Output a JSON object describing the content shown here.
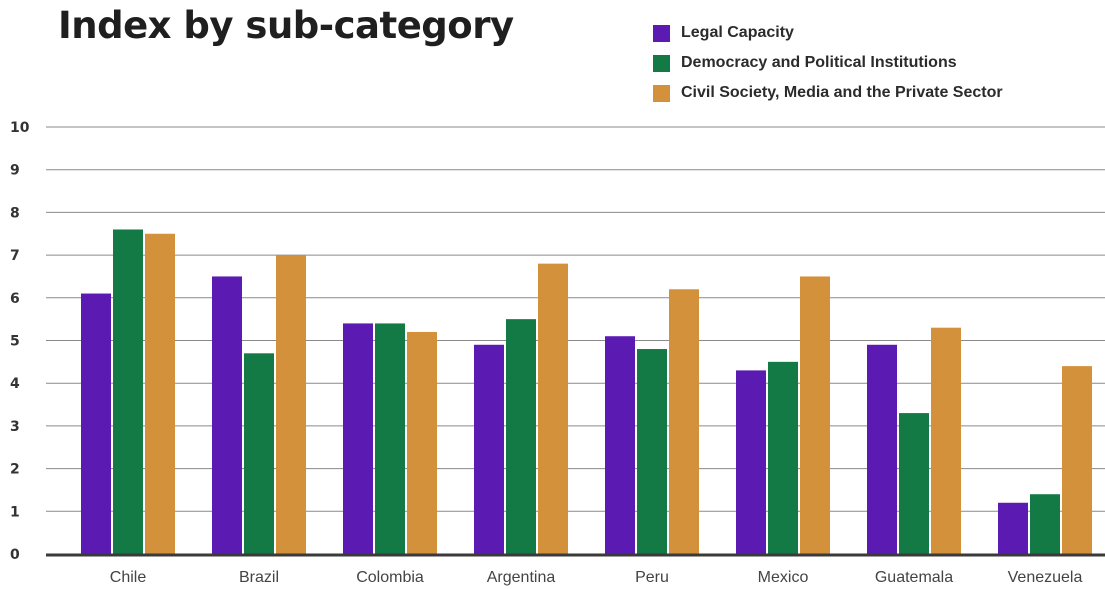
{
  "chart_data": {
    "type": "bar",
    "title": "Index by sub-category",
    "xlabel": "",
    "ylabel": "",
    "ylim": [
      0,
      10
    ],
    "yticks": [
      "0",
      "1",
      "2",
      "3",
      "4",
      "5",
      "6",
      "7",
      "8",
      "9",
      "10"
    ],
    "grid": "horizontal",
    "legend_position": "top-right",
    "categories": [
      "Chile",
      "Brazil",
      "Colombia",
      "Argentina",
      "Peru",
      "Mexico",
      "Guatemala",
      "Venezuela"
    ],
    "series": [
      {
        "name": "Legal Capacity",
        "color": "#5b1bb3",
        "values": [
          6.1,
          6.5,
          5.4,
          4.9,
          5.1,
          4.3,
          4.9,
          1.2
        ]
      },
      {
        "name": "Democracy and Political Institutions",
        "color": "#137a45",
        "values": [
          7.6,
          4.7,
          5.4,
          5.5,
          4.8,
          4.5,
          3.3,
          1.4
        ]
      },
      {
        "name": "Civil Society, Media and the Private Sector",
        "color": "#d4913c",
        "values": [
          7.5,
          7.0,
          5.2,
          6.8,
          6.2,
          6.5,
          5.3,
          4.4
        ]
      }
    ]
  }
}
